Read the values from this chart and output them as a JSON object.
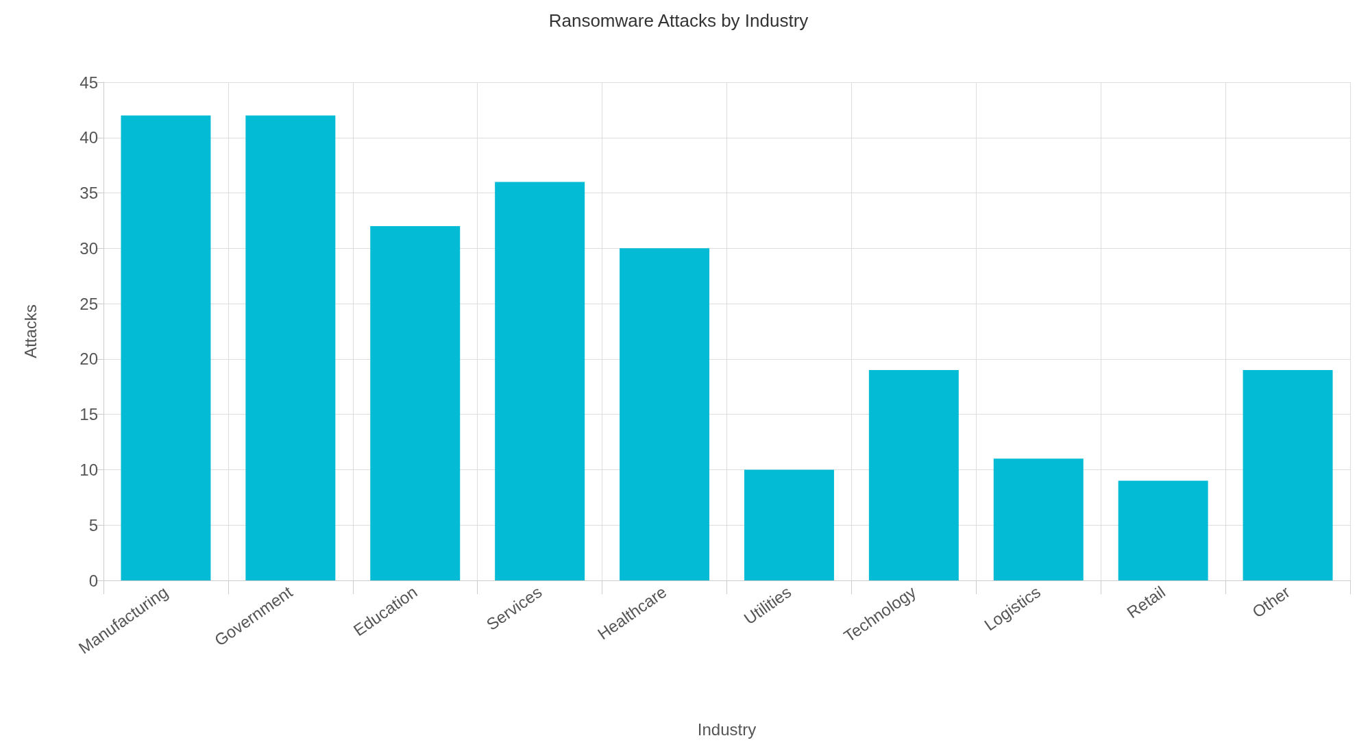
{
  "chart_data": {
    "type": "bar",
    "title": "Ransomware Attacks by Industry",
    "xlabel": "Industry",
    "ylabel": "Attacks",
    "categories": [
      "Manufacturing",
      "Government",
      "Education",
      "Services",
      "Healthcare",
      "Utilities",
      "Technology",
      "Logistics",
      "Retail",
      "Other"
    ],
    "values": [
      42,
      42,
      32,
      36,
      30,
      10,
      19,
      11,
      9,
      19
    ],
    "color": "#03bbd4",
    "ylim": [
      0,
      45
    ],
    "yticks": [
      0,
      5,
      10,
      15,
      20,
      25,
      30,
      35,
      40,
      45
    ],
    "grid": true
  }
}
